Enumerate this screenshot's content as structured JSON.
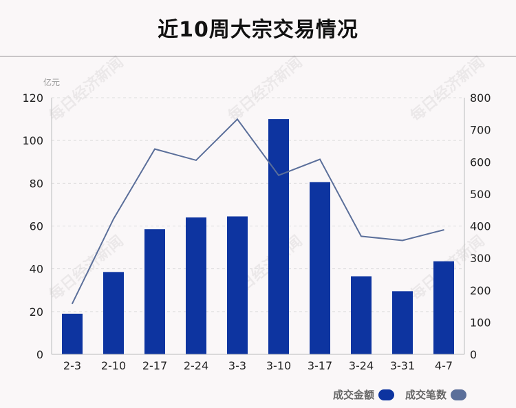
{
  "title": "近10周大宗交易情况",
  "chart_data": {
    "type": "bar",
    "title": "近10周大宗交易情况",
    "left_unit": "亿元",
    "categories": [
      "2-3",
      "2-10",
      "2-17",
      "2-24",
      "3-3",
      "3-10",
      "3-17",
      "3-24",
      "3-31",
      "4-7"
    ],
    "series": [
      {
        "name": "成交金额",
        "type": "bar",
        "axis": "left",
        "color": "#0d34a0",
        "values": [
          19,
          38.5,
          58.5,
          64,
          64.5,
          110,
          80.5,
          36.5,
          29.5,
          43.5
        ]
      },
      {
        "name": "成交笔数",
        "type": "line",
        "axis": "right",
        "color": "#5b6f9a",
        "values": [
          158,
          422,
          640,
          605,
          733,
          558,
          608,
          368,
          355,
          388
        ]
      }
    ],
    "left_axis": {
      "ylim": [
        0,
        120
      ],
      "ticks": [
        0,
        20,
        40,
        60,
        80,
        100,
        120
      ]
    },
    "right_axis": {
      "ylim": [
        0,
        800
      ],
      "ticks": [
        0,
        100,
        200,
        300,
        400,
        500,
        600,
        700,
        800
      ]
    },
    "grid": true,
    "legend_position": "bottom-right"
  },
  "legend": [
    {
      "label": "成交金额",
      "color": "#0d34a0"
    },
    {
      "label": "成交笔数",
      "color": "#5b6f9a"
    }
  ],
  "watermark": "每日经济新闻"
}
